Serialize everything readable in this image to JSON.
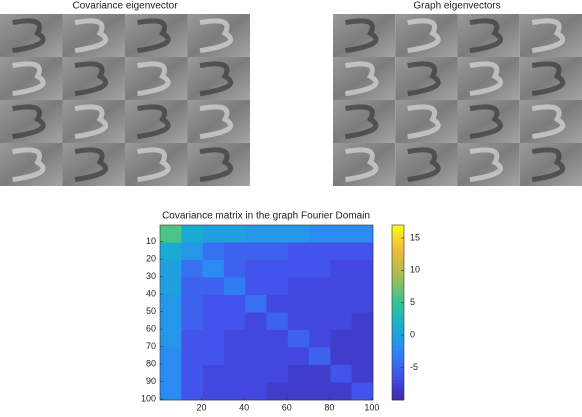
{
  "chart_data": [
    {
      "type": "image",
      "title": "Covariance eigenvector"
    },
    {
      "type": "image",
      "title": "Graph eigenvectors"
    },
    {
      "type": "heatmap",
      "title": "Covariance matrix in the graph Fourier Domain",
      "xlim": [
        0.5,
        100.5
      ],
      "ylim": [
        0.5,
        100.5
      ],
      "y_reversed": true,
      "xticks": [
        20,
        40,
        60,
        80,
        100
      ],
      "yticks": [
        10,
        20,
        30,
        40,
        50,
        60,
        70,
        80,
        90,
        100
      ],
      "values": [
        [
          6,
          1,
          0,
          0,
          -1,
          -1,
          -1,
          -2,
          -2,
          -2
        ],
        [
          1,
          -1,
          -4,
          -5,
          -5,
          -5,
          -6,
          -6,
          -6,
          -6
        ],
        [
          0,
          -4,
          -2,
          -5,
          -6,
          -6,
          -6,
          -6,
          -7,
          -7
        ],
        [
          0,
          -5,
          -5,
          -3,
          -6,
          -6,
          -7,
          -7,
          -7,
          -7
        ],
        [
          -1,
          -5,
          -6,
          -6,
          -4,
          -7,
          -7,
          -7,
          -7,
          -7
        ],
        [
          -1,
          -5,
          -6,
          -6,
          -7,
          -5,
          -7,
          -7,
          -7,
          -8
        ],
        [
          -1,
          -6,
          -6,
          -7,
          -7,
          -7,
          -5,
          -7,
          -8,
          -8
        ],
        [
          -2,
          -6,
          -6,
          -7,
          -7,
          -7,
          -7,
          -5,
          -8,
          -8
        ],
        [
          -2,
          -6,
          -7,
          -7,
          -7,
          -7,
          -8,
          -8,
          -6,
          -8
        ],
        [
          -2,
          -6,
          -7,
          -7,
          -7,
          -8,
          -8,
          -8,
          -8,
          -6
        ]
      ],
      "colormap": [
        "#3e26a8",
        "#4352ec",
        "#2d88f4",
        "#17b1d0",
        "#3dc48f",
        "#aabd4f",
        "#f2b93a",
        "#f9fb15"
      ],
      "clim": [
        -10,
        17
      ],
      "cticks": [
        -5,
        0,
        5,
        10,
        15
      ],
      "grid": false
    }
  ]
}
